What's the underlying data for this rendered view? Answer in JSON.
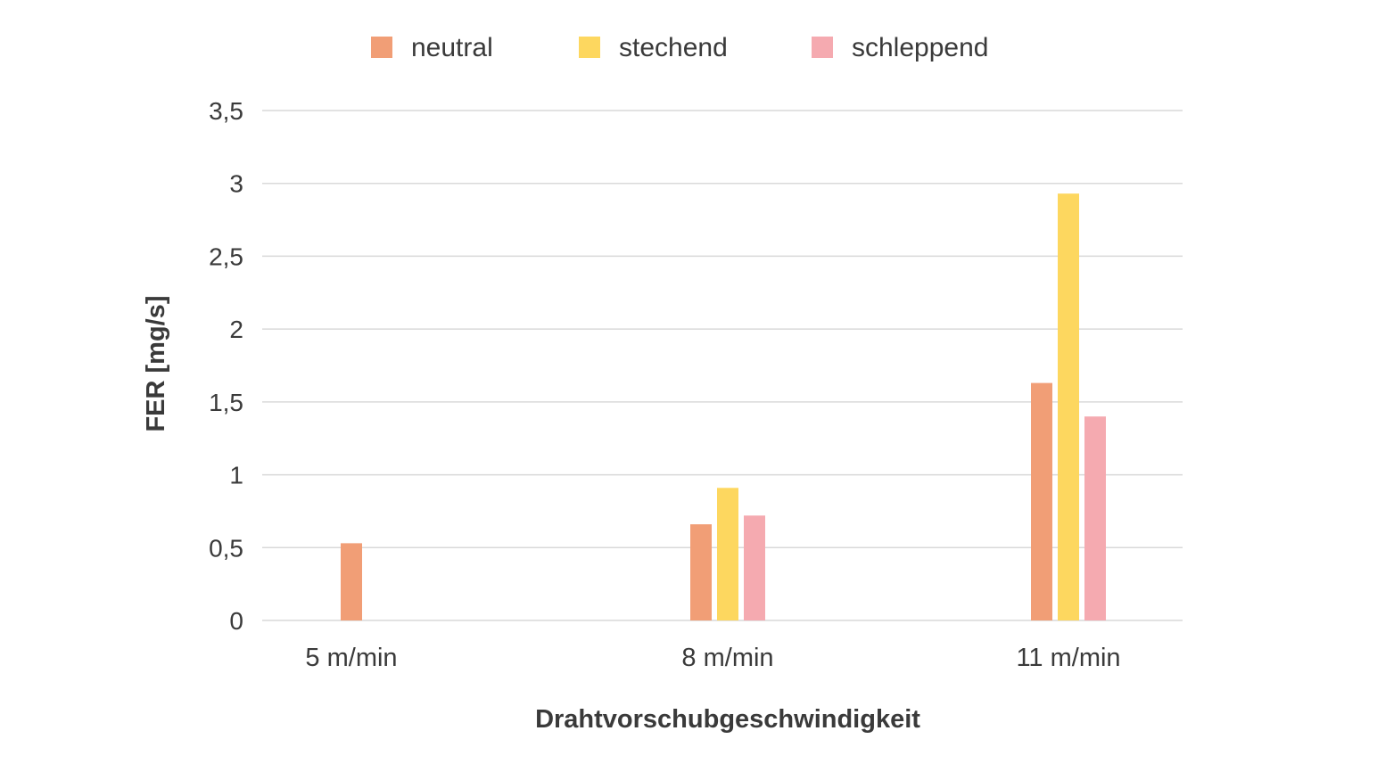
{
  "chart_data": {
    "type": "bar",
    "title": "",
    "xlabel": "Drahtvorschubgeschwindigkeit",
    "ylabel": "FER [mg/s]",
    "categories": [
      "5 m/min",
      "8 m/min",
      "11 m/min"
    ],
    "series": [
      {
        "name": "neutral",
        "color": "#f19e76",
        "values": [
          0.53,
          0.66,
          1.63
        ]
      },
      {
        "name": "stechend",
        "color": "#fdd75f",
        "values": [
          null,
          0.91,
          2.93
        ]
      },
      {
        "name": "schleppend",
        "color": "#f5aab0",
        "values": [
          null,
          0.72,
          1.4
        ]
      }
    ],
    "ylim": [
      0,
      3.5
    ],
    "yticks": [
      0,
      0.5,
      1,
      1.5,
      2,
      2.5,
      3,
      3.5
    ],
    "ytick_labels": [
      "0",
      "0,5",
      "1",
      "1,5",
      "2",
      "2,5",
      "3",
      "3,5"
    ],
    "grid": true,
    "legend_position": "top"
  }
}
